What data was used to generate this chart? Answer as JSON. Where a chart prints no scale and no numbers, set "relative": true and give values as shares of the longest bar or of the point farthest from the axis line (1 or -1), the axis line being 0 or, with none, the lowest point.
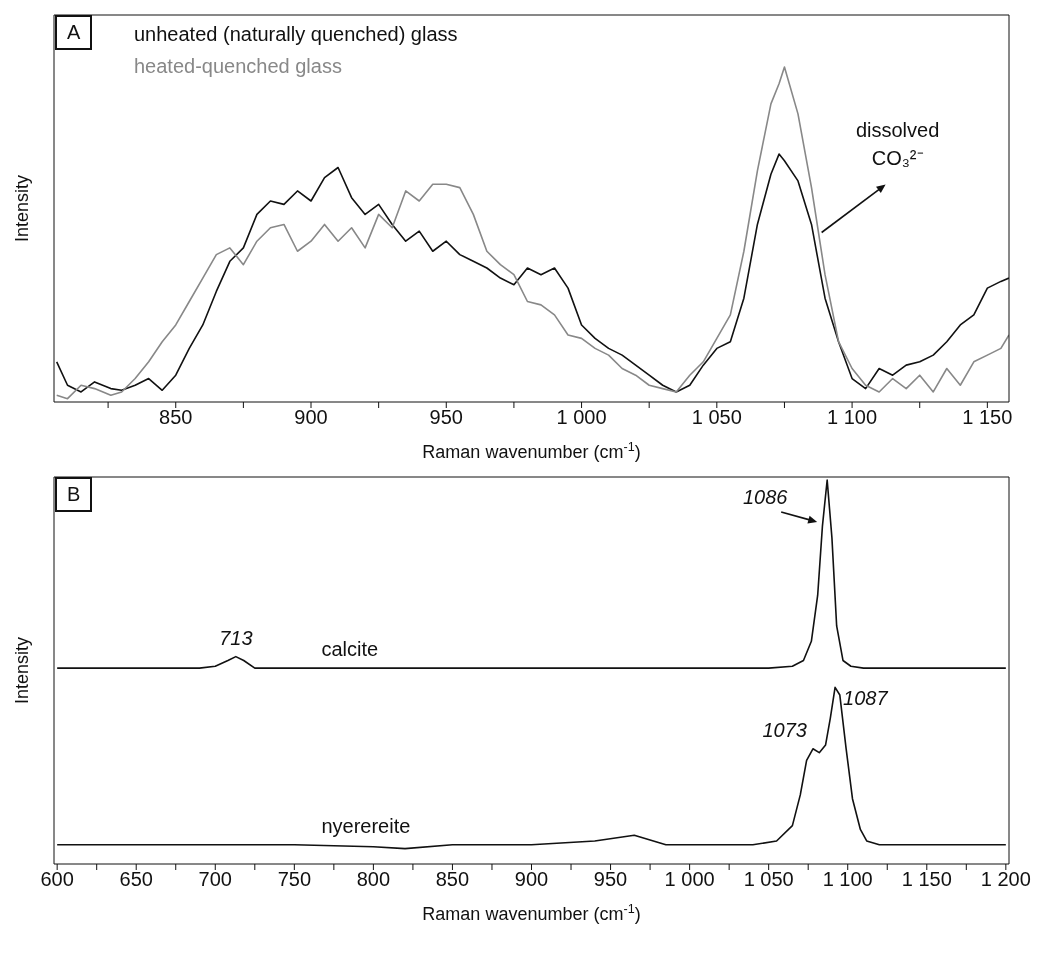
{
  "chart_data": [
    {
      "type": "line",
      "relative": true,
      "xlabel": "Raman wavenumber (cm$^{-1}$)",
      "ylabel": "Intensity",
      "legend": "top left",
      "xlim": [
        805,
        1158
      ],
      "xticks": [
        {
          "value": 825,
          "label": null
        },
        850,
        {
          "value": 875,
          "label": null
        },
        900,
        {
          "value": 925,
          "label": null
        },
        950,
        {
          "value": 975,
          "label": null
        },
        {
          "value": 1000,
          "label": "1 000"
        },
        {
          "value": 1025,
          "label": null
        },
        {
          "value": 1050,
          "label": "1 050"
        },
        {
          "value": 1075,
          "label": null
        },
        {
          "value": 1100,
          "label": "1 100"
        },
        {
          "value": 1125,
          "label": null
        },
        {
          "value": 1150,
          "label": "1 150"
        }
      ],
      "x": [
        806,
        810,
        815,
        820,
        826,
        830,
        835,
        840,
        845,
        850,
        855,
        860,
        865,
        870,
        875,
        880,
        885,
        890,
        895,
        900,
        905,
        910,
        915,
        920,
        925,
        930,
        935,
        940,
        945,
        950,
        955,
        960,
        965,
        970,
        975,
        980,
        985,
        990,
        995,
        1000,
        1005,
        1010,
        1015,
        1020,
        1025,
        1030,
        1035,
        1040,
        1045,
        1050,
        1055,
        1060,
        1065,
        1070,
        1073,
        1075,
        1080,
        1085,
        1090,
        1095,
        1100,
        1105,
        1110,
        1115,
        1120,
        1125,
        1130,
        1135,
        1140,
        1145,
        1150,
        1155,
        1158
      ],
      "annotations": [
        "A",
        {
          "text": "dissolved CO₃²⁻",
          "x": 1088,
          "y": 0.5
        }
      ],
      "series": [
        {
          "name": "unheated (naturally quenched) glass",
          "color": "#111111",
          "values": [
            0.12,
            0.05,
            0.03,
            0.06,
            0.04,
            0.035,
            0.05,
            0.07,
            0.035,
            0.08,
            0.16,
            0.23,
            0.33,
            0.42,
            0.46,
            0.56,
            0.6,
            0.59,
            0.63,
            0.6,
            0.67,
            0.7,
            0.61,
            0.56,
            0.59,
            0.53,
            0.48,
            0.51,
            0.45,
            0.48,
            0.44,
            0.42,
            0.4,
            0.37,
            0.35,
            0.4,
            0.38,
            0.4,
            0.34,
            0.23,
            0.19,
            0.16,
            0.14,
            0.11,
            0.08,
            0.05,
            0.03,
            0.05,
            0.11,
            0.16,
            0.18,
            0.31,
            0.53,
            0.68,
            0.74,
            0.72,
            0.66,
            0.53,
            0.31,
            0.18,
            0.07,
            0.04,
            0.1,
            0.08,
            0.11,
            0.12,
            0.14,
            0.18,
            0.23,
            0.26,
            0.34,
            0.36,
            0.37
          ]
        },
        {
          "name": "heated-quenched glass",
          "color": "#888888",
          "values": [
            0.02,
            0.01,
            0.05,
            0.04,
            0.02,
            0.03,
            0.07,
            0.12,
            0.18,
            0.23,
            0.3,
            0.37,
            0.44,
            0.46,
            0.41,
            0.48,
            0.52,
            0.53,
            0.45,
            0.48,
            0.53,
            0.48,
            0.52,
            0.46,
            0.56,
            0.52,
            0.63,
            0.6,
            0.65,
            0.65,
            0.64,
            0.56,
            0.45,
            0.41,
            0.38,
            0.3,
            0.29,
            0.26,
            0.2,
            0.19,
            0.16,
            0.14,
            0.1,
            0.08,
            0.05,
            0.04,
            0.03,
            0.08,
            0.12,
            0.19,
            0.26,
            0.45,
            0.69,
            0.89,
            0.95,
            1,
            0.86,
            0.64,
            0.38,
            0.18,
            0.1,
            0.05,
            0.03,
            0.07,
            0.04,
            0.08,
            0.03,
            0.1,
            0.05,
            0.12,
            0.14,
            0.16,
            0.2
          ]
        }
      ]
    },
    {
      "type": "line",
      "relative": true,
      "xlabel": "Raman wavenumber (cm$^{-1}$)",
      "ylabel": "Intensity",
      "xlim": [
        598,
        1202
      ],
      "xticks": [
        600,
        {
          "value": 625,
          "label": null
        },
        650,
        {
          "value": 675,
          "label": null
        },
        700,
        {
          "value": 725,
          "label": null
        },
        750,
        {
          "value": 775,
          "label": null
        },
        800,
        {
          "value": 825,
          "label": null
        },
        850,
        {
          "value": 875,
          "label": null
        },
        900,
        {
          "value": 925,
          "label": null
        },
        950,
        {
          "value": 975,
          "label": null
        },
        {
          "value": 1000,
          "label": "1 000"
        },
        {
          "value": 1025,
          "label": null
        },
        {
          "value": 1050,
          "label": "1 050"
        },
        {
          "value": 1075,
          "label": null
        },
        {
          "value": 1100,
          "label": "1 100"
        },
        {
          "value": 1125,
          "label": null
        },
        {
          "value": 1150,
          "label": "1 150"
        },
        {
          "value": 1175,
          "label": null
        },
        {
          "value": 1200,
          "label": "1 200"
        }
      ],
      "annotations": [
        "B",
        {
          "text": "713",
          "x": 713,
          "y": 0.54
        },
        {
          "text": "1086",
          "x": 1087,
          "y": 1
        },
        {
          "text": "1073",
          "x": 1078,
          "y": 0.3
        },
        {
          "text": "1087",
          "x": 1092,
          "y": 0.46
        }
      ],
      "series": [
        {
          "name": "calcite",
          "color": "#111111",
          "x": [
            600,
            690,
            700,
            708,
            713,
            718,
            725,
            1050,
            1065,
            1072,
            1077,
            1081,
            1084,
            1087,
            1090,
            1093,
            1097,
            1102,
            1110,
            1200
          ],
          "values": [
            0.51,
            0.51,
            0.515,
            0.53,
            0.54,
            0.53,
            0.51,
            0.51,
            0.515,
            0.53,
            0.58,
            0.7,
            0.88,
            1,
            0.85,
            0.62,
            0.53,
            0.515,
            0.51,
            0.51
          ]
        },
        {
          "name": "nyerereite",
          "color": "#111111",
          "x": [
            600,
            650,
            700,
            750,
            800,
            820,
            850,
            900,
            940,
            965,
            985,
            1040,
            1055,
            1065,
            1070,
            1074,
            1078,
            1082,
            1086,
            1089,
            1092,
            1095,
            1099,
            1103,
            1108,
            1112,
            1120,
            1200
          ],
          "values": [
            0.05,
            0.05,
            0.05,
            0.05,
            0.045,
            0.04,
            0.05,
            0.05,
            0.06,
            0.075,
            0.05,
            0.05,
            0.06,
            0.1,
            0.18,
            0.27,
            0.3,
            0.29,
            0.31,
            0.38,
            0.46,
            0.44,
            0.3,
            0.17,
            0.09,
            0.06,
            0.05,
            0.05
          ]
        }
      ]
    }
  ]
}
